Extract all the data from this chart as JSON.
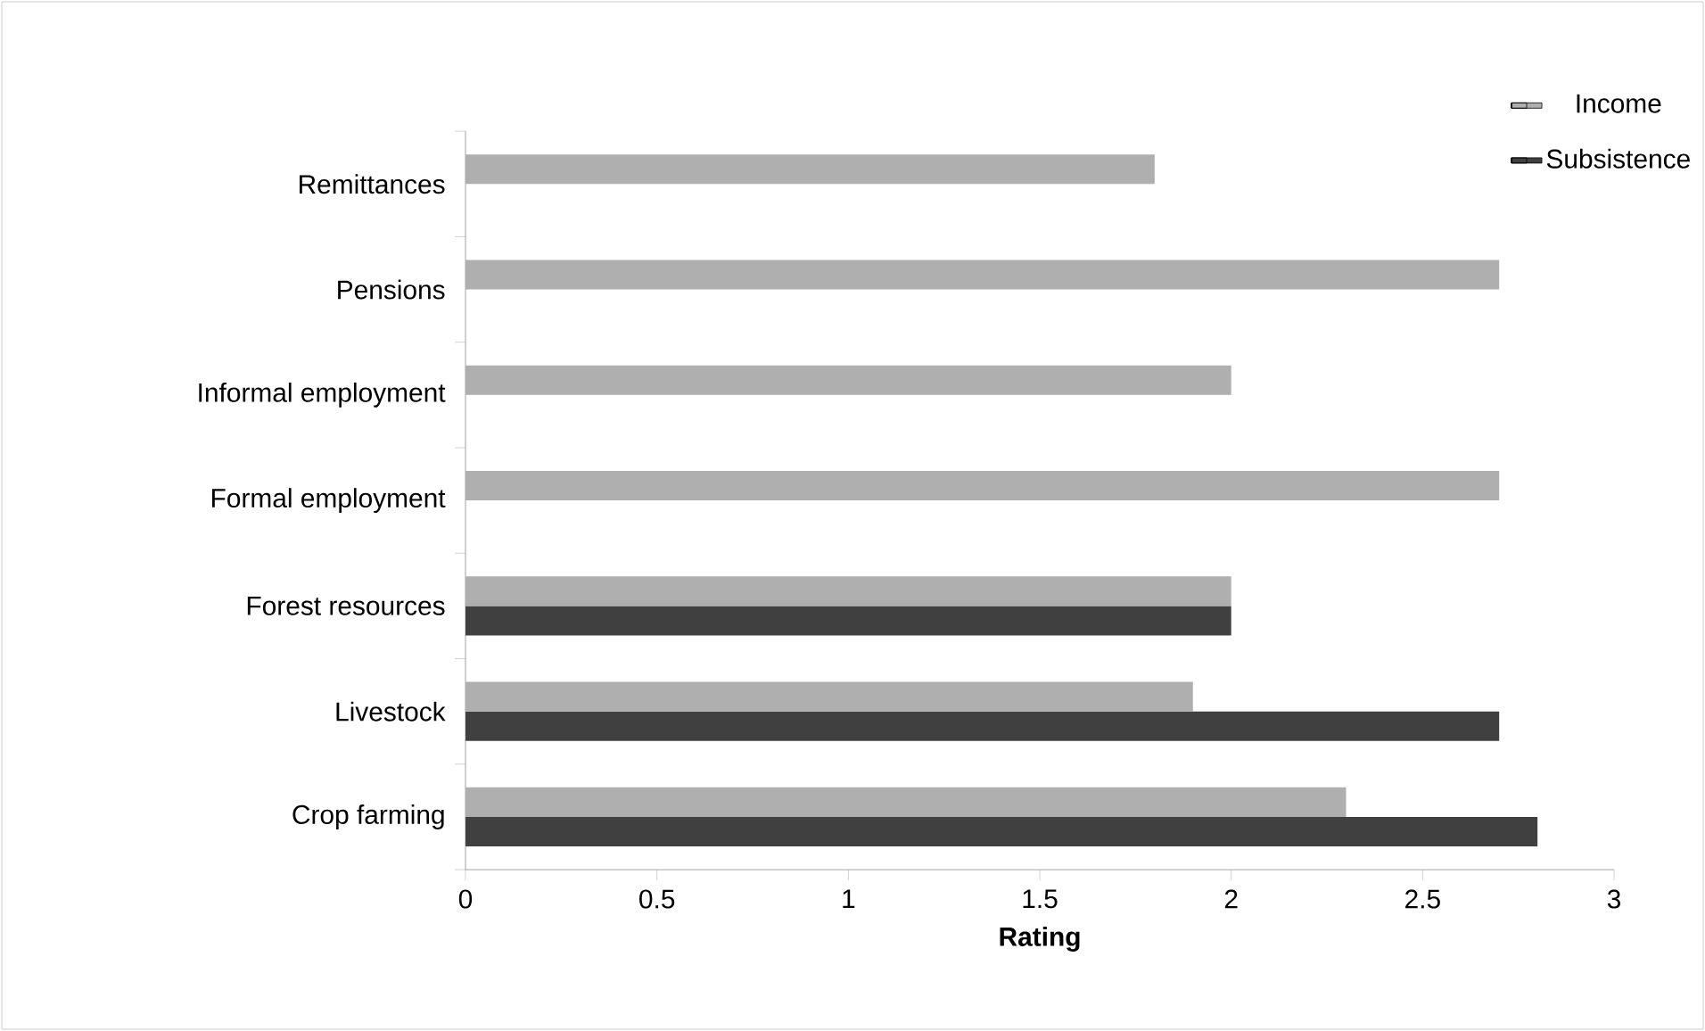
{
  "chart_data": {
    "type": "bar",
    "orientation": "horizontal",
    "xlabel": "Rating",
    "categories": [
      "Remittances",
      "Pensions",
      "Informal employment",
      "Formal employment",
      "Forest resources",
      "Livestock",
      "Crop farming"
    ],
    "series": [
      {
        "name": "Income",
        "color": "#afafaf",
        "values": [
          1.8,
          2.7,
          2.0,
          2.7,
          2.0,
          1.9,
          2.3
        ]
      },
      {
        "name": "Subsistence",
        "color": "#404040",
        "values": [
          null,
          null,
          null,
          null,
          2.0,
          2.7,
          2.8
        ]
      }
    ],
    "xlim": [
      0,
      3
    ],
    "xticks": [
      0,
      0.5,
      1,
      1.5,
      2,
      2.5,
      3
    ],
    "legend": "top right",
    "grid": false
  }
}
